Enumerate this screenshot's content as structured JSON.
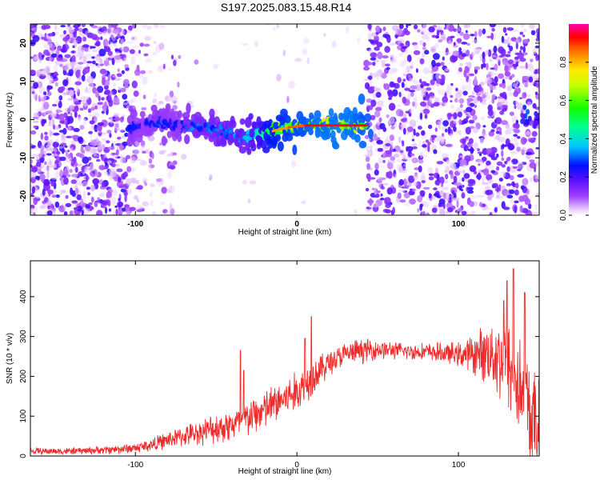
{
  "title": "S197.2025.083.15.48.R14",
  "chart_data": [
    {
      "type": "heatmap",
      "xlabel": "Height of straight line (km)",
      "ylabel": "Frequency (Hz)",
      "xlim": [
        -165,
        150
      ],
      "ylim": [
        -25,
        25
      ],
      "x_ticks": [
        -100,
        0,
        100
      ],
      "x_tick_labels": [
        "-100",
        "0",
        "100"
      ],
      "y_ticks": [
        -20,
        -10,
        0,
        10,
        20
      ],
      "y_tick_labels": [
        "-20",
        "-10",
        "0",
        "10",
        "20"
      ],
      "colorbar": {
        "label": "Normalized spectral amplitude",
        "range": [
          0,
          1
        ],
        "ticks": [
          0.0,
          0.2,
          0.4,
          0.6,
          0.8
        ],
        "tick_labels": [
          "0.0",
          "0.2",
          "0.4",
          "0.6",
          "0.8"
        ],
        "colormap": "rainbow (white-violet-blue-cyan-green-yellow-red-magenta)"
      },
      "ridge": {
        "description": "strong spectral ridge",
        "points": [
          {
            "x": -105,
            "y": -3,
            "amp": 0.35
          },
          {
            "x": -95,
            "y": -1,
            "amp": 0.3
          },
          {
            "x": -85,
            "y": -0.5,
            "amp": 0.35
          },
          {
            "x": -75,
            "y": -1.5,
            "amp": 0.3
          },
          {
            "x": -65,
            "y": -1.5,
            "amp": 0.4
          },
          {
            "x": -55,
            "y": -2,
            "amp": 0.4
          },
          {
            "x": -45,
            "y": -3.5,
            "amp": 0.45
          },
          {
            "x": -35,
            "y": -4.5,
            "amp": 0.45
          },
          {
            "x": -25,
            "y": -3.5,
            "amp": 0.55
          },
          {
            "x": -15,
            "y": -3,
            "amp": 0.75
          },
          {
            "x": -5,
            "y": -2,
            "amp": 0.8
          },
          {
            "x": 5,
            "y": -1.5,
            "amp": 0.85
          },
          {
            "x": 15,
            "y": -1.5,
            "amp": 0.9
          },
          {
            "x": 25,
            "y": -1.5,
            "amp": 0.9
          },
          {
            "x": 35,
            "y": -1.5,
            "amp": 0.9
          },
          {
            "x": 43,
            "y": -1.5,
            "amp": 0.85
          }
        ],
        "tail": [
          {
            "x": 141,
            "y": 0,
            "amp": 0.3
          },
          {
            "x": 148,
            "y": -1,
            "amp": 0.25
          }
        ]
      },
      "noise_regions": [
        {
          "from": -165,
          "to": -105,
          "style": "dense violet speckle"
        },
        {
          "from": -105,
          "to": -75,
          "style": "sparse violet speckle"
        },
        {
          "from": -75,
          "to": 43,
          "style": "mostly empty"
        },
        {
          "from": 43,
          "to": 150,
          "style": "regular violet speckle"
        }
      ]
    },
    {
      "type": "line",
      "xlabel": "Height of straight line (km)",
      "ylabel": "SNR (10 * v/v)",
      "xlim": [
        -165,
        150
      ],
      "ylim": [
        0,
        490
      ],
      "x_ticks": [
        -100,
        0,
        100
      ],
      "x_tick_labels": [
        "-100",
        "0",
        "100"
      ],
      "y_ticks": [
        0,
        100,
        200,
        300,
        400
      ],
      "y_tick_labels": [
        "0",
        "100",
        "200",
        "300",
        "400"
      ],
      "series": [
        {
          "color": "#ee2b2b",
          "envelope": {
            "x": [
              -165,
              -140,
              -120,
              -100,
              -90,
              -80,
              -70,
              -60,
              -50,
              -40,
              -30,
              -20,
              -10,
              0,
              10,
              20,
              30,
              40,
              50,
              60,
              70,
              80,
              90,
              100,
              110,
              120,
              130,
              135,
              140,
              145,
              150
            ],
            "mean": [
              12,
              12,
              15,
              20,
              28,
              40,
              50,
              60,
              70,
              78,
              95,
              115,
              140,
              160,
              200,
              235,
              255,
              265,
              268,
              265,
              262,
              262,
              258,
              255,
              255,
              260,
              235,
              200,
              150,
              100,
              60
            ],
            "spread": [
              10,
              10,
              12,
              15,
              20,
              25,
              30,
              35,
              45,
              50,
              55,
              60,
              60,
              60,
              55,
              40,
              35,
              35,
              30,
              25,
              25,
              25,
              30,
              35,
              60,
              100,
              140,
              160,
              170,
              160,
              150
            ]
          },
          "spikes": [
            {
              "x": -35,
              "y": 265
            },
            {
              "x": -33,
              "y": 215
            },
            {
              "x": 9,
              "y": 350
            },
            {
              "x": 5,
              "y": 295
            },
            {
              "x": 130,
              "y": 440
            },
            {
              "x": 134,
              "y": 470
            },
            {
              "x": 141,
              "y": 410
            },
            {
              "x": 128,
              "y": 390
            }
          ]
        }
      ]
    }
  ]
}
